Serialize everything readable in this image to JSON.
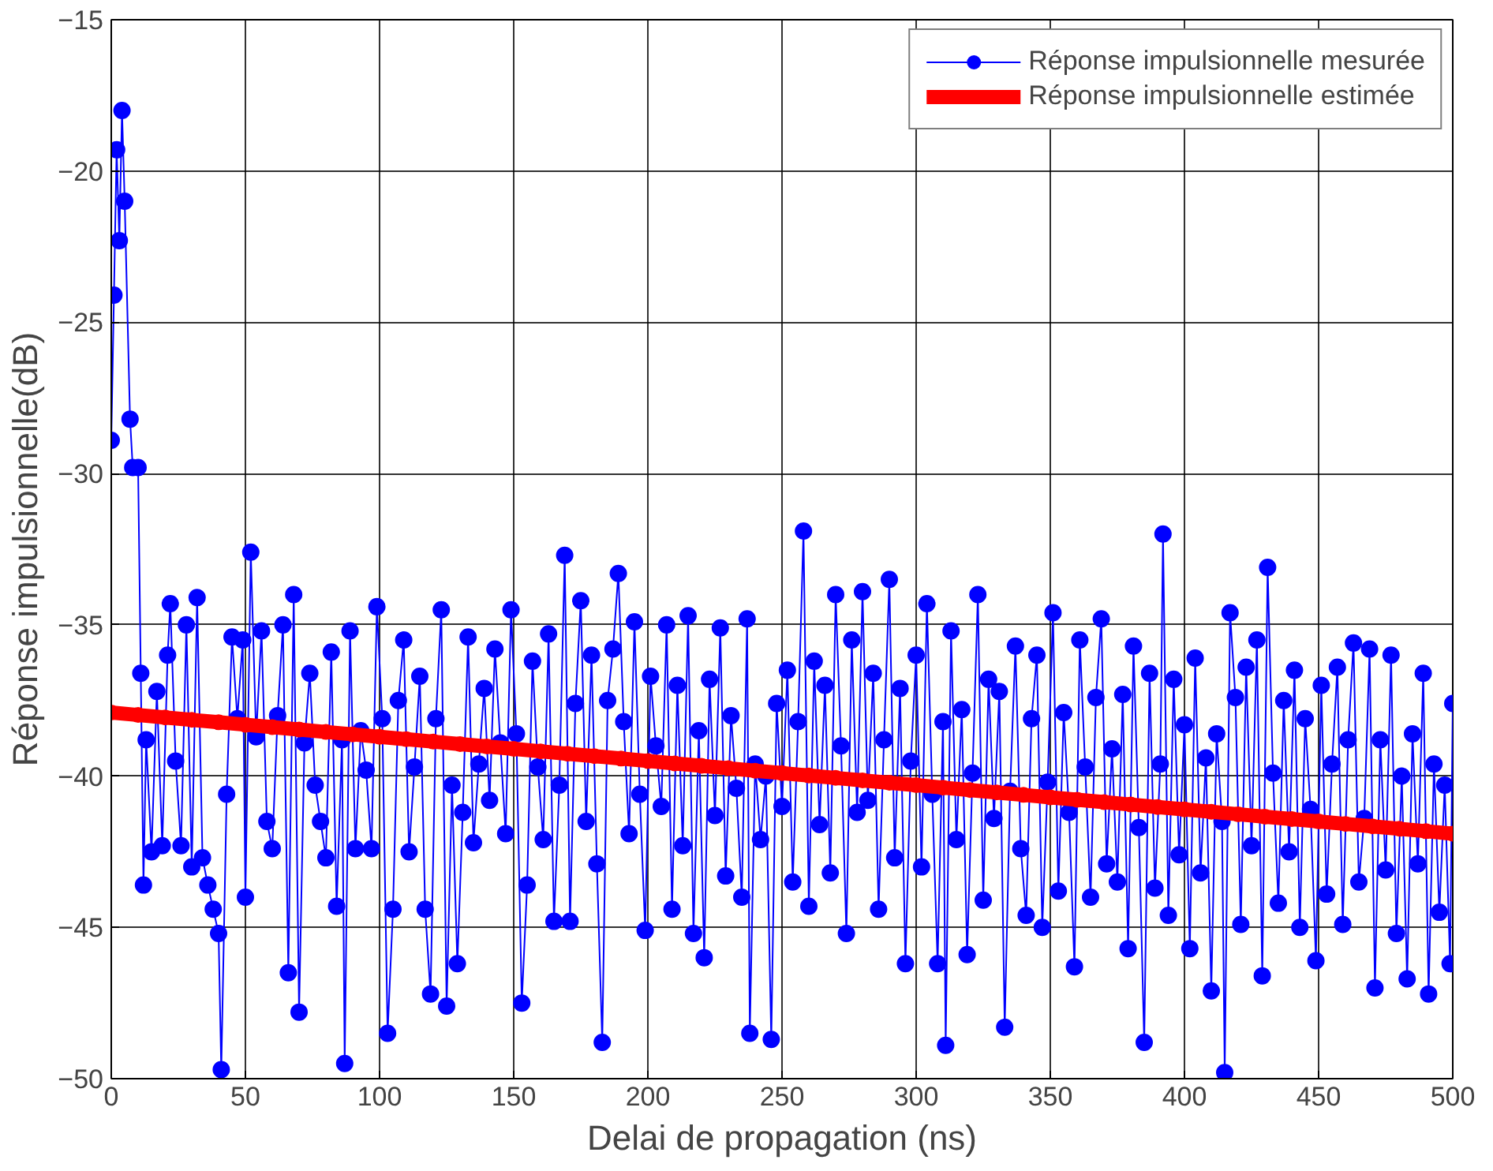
{
  "chart_data": {
    "type": "line",
    "xlabel": "Delai de propagation (ns)",
    "ylabel": "Réponse impulsionnelle(dB)",
    "xlim": [
      0,
      500
    ],
    "ylim": [
      -50,
      -15
    ],
    "xticks": [
      0,
      50,
      100,
      150,
      200,
      250,
      300,
      350,
      400,
      450,
      500
    ],
    "yticks": [
      -50,
      -45,
      -40,
      -35,
      -30,
      -25,
      -20,
      -15
    ],
    "grid": true,
    "legend": "top right",
    "marker": "circle",
    "line_style": "solid",
    "series": [
      {
        "name": "Réponse impulsionnelle mesurée",
        "color": "#0000ff",
        "x": [
          0,
          1,
          2,
          3,
          4,
          5,
          7,
          8,
          10,
          11,
          12,
          13,
          15,
          17,
          19,
          21,
          22,
          24,
          26,
          28,
          30,
          32,
          34,
          36,
          38,
          40,
          41,
          43,
          45,
          47,
          49,
          50,
          52,
          54,
          56,
          58,
          60,
          62,
          64,
          66,
          68,
          70,
          72,
          74,
          76,
          78,
          80,
          82,
          84,
          86,
          87,
          89,
          91,
          93,
          95,
          97,
          99,
          101,
          103,
          105,
          107,
          109,
          111,
          113,
          115,
          117,
          119,
          121,
          123,
          125,
          127,
          129,
          131,
          133,
          135,
          137,
          139,
          141,
          143,
          145,
          147,
          149,
          151,
          153,
          155,
          157,
          159,
          161,
          163,
          165,
          167,
          169,
          171,
          173,
          175,
          177,
          179,
          181,
          183,
          185,
          187,
          189,
          191,
          193,
          195,
          197,
          199,
          201,
          203,
          205,
          207,
          209,
          211,
          213,
          215,
          217,
          219,
          221,
          223,
          225,
          227,
          229,
          231,
          233,
          235,
          237,
          238,
          240,
          242,
          244,
          246,
          248,
          250,
          252,
          254,
          256,
          258,
          260,
          262,
          264,
          266,
          268,
          270,
          272,
          274,
          276,
          278,
          280,
          282,
          284,
          286,
          288,
          290,
          292,
          294,
          296,
          298,
          300,
          302,
          304,
          306,
          308,
          310,
          311,
          313,
          315,
          317,
          319,
          321,
          323,
          325,
          327,
          329,
          331,
          333,
          335,
          337,
          339,
          341,
          343,
          345,
          347,
          349,
          351,
          353,
          355,
          357,
          359,
          361,
          363,
          365,
          367,
          369,
          371,
          373,
          375,
          377,
          379,
          381,
          383,
          385,
          387,
          389,
          391,
          392,
          394,
          396,
          398,
          400,
          402,
          404,
          406,
          408,
          410,
          412,
          414,
          415,
          417,
          419,
          421,
          423,
          425,
          427,
          429,
          431,
          433,
          435,
          437,
          439,
          441,
          443,
          445,
          447,
          449,
          451,
          453,
          455,
          457,
          459,
          461,
          463,
          465,
          467,
          469,
          471,
          473,
          475,
          477,
          479,
          481,
          483,
          485,
          487,
          489,
          491,
          493,
          495,
          497,
          499,
          500
        ],
        "values": [
          -28.9,
          -24.1,
          -19.3,
          -22.3,
          -18.0,
          -21.0,
          -28.2,
          -29.8,
          -29.8,
          -36.6,
          -43.6,
          -38.8,
          -42.5,
          -37.2,
          -42.3,
          -36.0,
          -34.3,
          -39.5,
          -42.3,
          -35.0,
          -43.0,
          -34.1,
          -42.7,
          -43.6,
          -44.4,
          -45.2,
          -49.7,
          -40.6,
          -35.4,
          -38.1,
          -35.5,
          -44.0,
          -32.6,
          -38.7,
          -35.2,
          -41.5,
          -42.4,
          -38.0,
          -35.0,
          -46.5,
          -34.0,
          -47.8,
          -38.9,
          -36.6,
          -40.3,
          -41.5,
          -42.7,
          -35.9,
          -44.3,
          -38.8,
          -49.5,
          -35.2,
          -42.4,
          -38.5,
          -39.8,
          -42.4,
          -34.4,
          -38.1,
          -48.5,
          -44.4,
          -37.5,
          -35.5,
          -42.5,
          -39.7,
          -36.7,
          -44.4,
          -47.2,
          -38.1,
          -34.5,
          -47.6,
          -40.3,
          -46.2,
          -41.2,
          -35.4,
          -42.2,
          -39.6,
          -37.1,
          -40.8,
          -35.8,
          -38.9,
          -41.9,
          -34.5,
          -38.6,
          -47.5,
          -43.6,
          -36.2,
          -39.7,
          -42.1,
          -35.3,
          -44.8,
          -40.3,
          -32.7,
          -44.8,
          -37.6,
          -34.2,
          -41.5,
          -36.0,
          -42.9,
          -48.8,
          -37.5,
          -35.8,
          -33.3,
          -38.2,
          -41.9,
          -34.9,
          -40.6,
          -45.1,
          -36.7,
          -39.0,
          -41.0,
          -35.0,
          -44.4,
          -37.0,
          -42.3,
          -34.7,
          -45.2,
          -38.5,
          -46.0,
          -36.8,
          -41.3,
          -35.1,
          -43.3,
          -38.0,
          -40.4,
          -44.0,
          -34.8,
          -48.5,
          -39.6,
          -42.1,
          -40.0,
          -48.7,
          -37.6,
          -41.0,
          -36.5,
          -43.5,
          -38.2,
          -31.9,
          -44.3,
          -36.2,
          -41.6,
          -37.0,
          -43.2,
          -34.0,
          -39.0,
          -45.2,
          -35.5,
          -41.2,
          -33.9,
          -40.8,
          -36.6,
          -44.4,
          -38.8,
          -33.5,
          -42.7,
          -37.1,
          -46.2,
          -39.5,
          -36.0,
          -43.0,
          -34.3,
          -40.6,
          -46.2,
          -38.2,
          -48.9,
          -35.2,
          -42.1,
          -37.8,
          -45.9,
          -39.9,
          -34.0,
          -44.1,
          -36.8,
          -41.4,
          -37.2,
          -48.3,
          -40.5,
          -35.7,
          -42.4,
          -44.6,
          -38.1,
          -36.0,
          -45.0,
          -40.2,
          -34.6,
          -43.8,
          -37.9,
          -41.2,
          -46.3,
          -35.5,
          -39.7,
          -44.0,
          -37.4,
          -34.8,
          -42.9,
          -39.1,
          -43.5,
          -37.3,
          -45.7,
          -35.7,
          -41.7,
          -48.8,
          -36.6,
          -43.7,
          -39.6,
          -32.0,
          -44.6,
          -36.8,
          -42.6,
          -38.3,
          -45.7,
          -36.1,
          -43.2,
          -39.4,
          -47.1,
          -38.6,
          -41.5,
          -49.8,
          -34.6,
          -37.4,
          -44.9,
          -36.4,
          -42.3,
          -35.5,
          -46.6,
          -33.1,
          -39.9,
          -44.2,
          -37.5,
          -42.5,
          -36.5,
          -45.0,
          -38.1,
          -41.1,
          -46.1,
          -37.0,
          -43.9,
          -39.6,
          -36.4,
          -44.9,
          -38.8,
          -35.6,
          -43.5,
          -41.4,
          -35.8,
          -47.0,
          -38.8,
          -43.1,
          -36.0,
          -45.2,
          -40.0,
          -46.7,
          -38.6,
          -42.9,
          -36.6,
          -47.2,
          -39.6,
          -44.5,
          -40.3,
          -46.2,
          -37.6
        ]
      },
      {
        "name": "Réponse impulsionnelle estimée",
        "color": "#ff0000",
        "x": [
          0,
          10,
          20,
          30,
          40,
          50,
          60,
          70,
          80,
          90,
          100,
          110,
          120,
          130,
          140,
          150,
          160,
          170,
          180,
          190,
          200,
          210,
          220,
          230,
          240,
          250,
          260,
          270,
          280,
          290,
          300,
          310,
          320,
          330,
          340,
          350,
          360,
          370,
          380,
          390,
          400,
          410,
          420,
          430,
          440,
          450,
          460,
          470,
          480,
          490,
          500
        ],
        "values": [
          -37.9,
          -37.98,
          -38.06,
          -38.14,
          -38.22,
          -38.3,
          -38.38,
          -38.46,
          -38.54,
          -38.62,
          -38.7,
          -38.78,
          -38.86,
          -38.94,
          -39.02,
          -39.1,
          -39.18,
          -39.26,
          -39.34,
          -39.42,
          -39.5,
          -39.58,
          -39.66,
          -39.74,
          -39.82,
          -39.9,
          -39.98,
          -40.06,
          -40.14,
          -40.22,
          -40.3,
          -40.38,
          -40.46,
          -40.54,
          -40.62,
          -40.7,
          -40.78,
          -40.86,
          -40.94,
          -41.02,
          -41.1,
          -41.18,
          -41.26,
          -41.34,
          -41.42,
          -41.5,
          -41.58,
          -41.66,
          -41.74,
          -41.82,
          -41.9
        ]
      }
    ]
  }
}
